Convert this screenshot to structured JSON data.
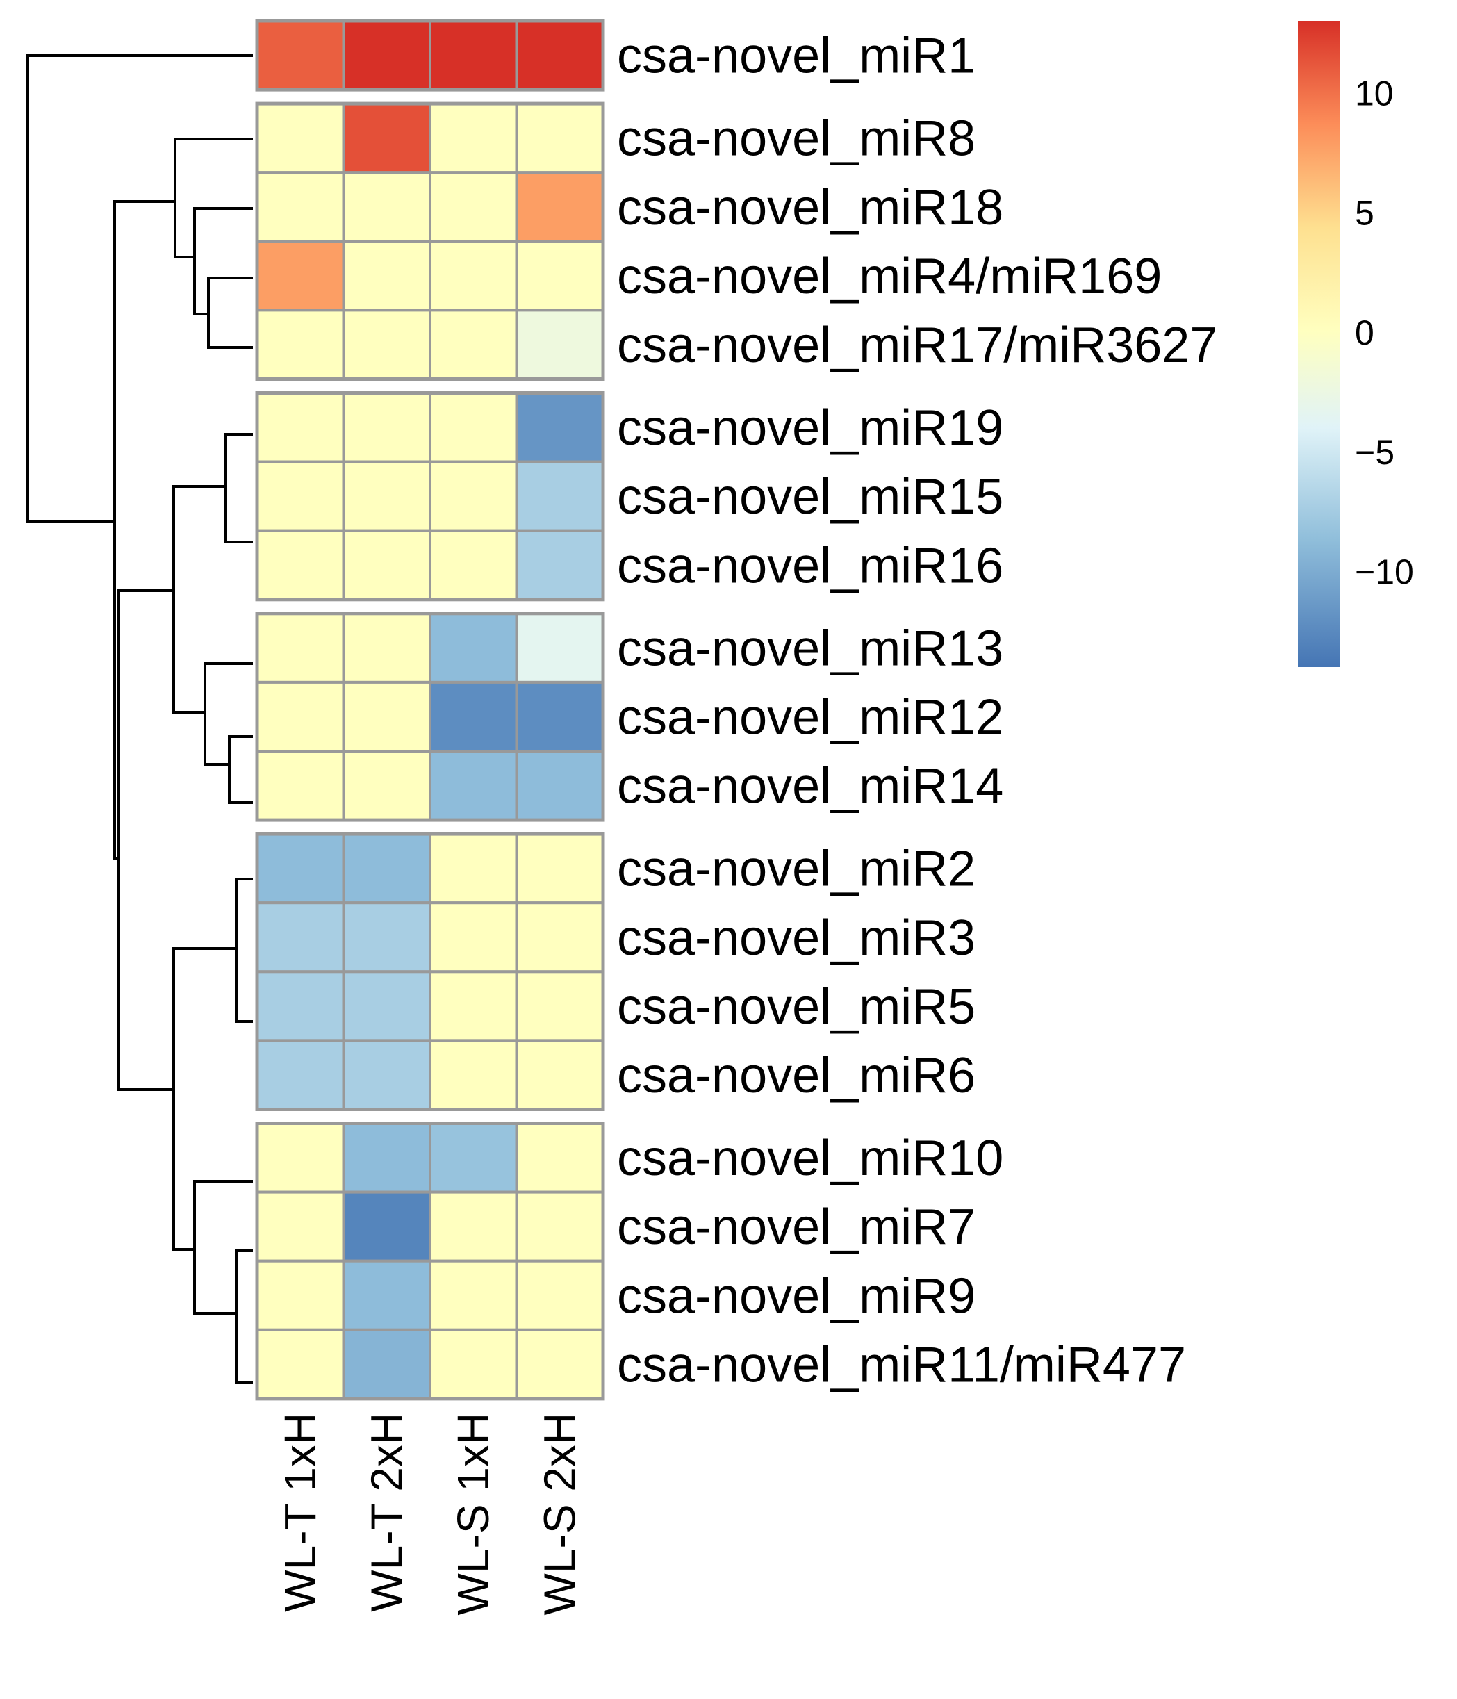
{
  "chart_data": {
    "type": "heatmap",
    "title": "",
    "columns": [
      "WL-T 1xH",
      "WL-T 2xH",
      "WL-S 1xH",
      "WL-S 2xH"
    ],
    "rows": [
      "csa-novel_miR1",
      "csa-novel_miR8",
      "csa-novel_miR18",
      "csa-novel_miR4/miR169",
      "csa-novel_miR17/miR3627",
      "csa-novel_miR19",
      "csa-novel_miR15",
      "csa-novel_miR16",
      "csa-novel_miR13",
      "csa-novel_miR12",
      "csa-novel_miR14",
      "csa-novel_miR2",
      "csa-novel_miR3",
      "csa-novel_miR5",
      "csa-novel_miR6",
      "csa-novel_miR10",
      "csa-novel_miR7",
      "csa-novel_miR9",
      "csa-novel_miR11/miR477"
    ],
    "values": [
      [
        10.8,
        13,
        13,
        13
      ],
      [
        0,
        11.5,
        0,
        0
      ],
      [
        0,
        0,
        0,
        7.8
      ],
      [
        7.8,
        0,
        0,
        0
      ],
      [
        0,
        0,
        0,
        -2.5
      ],
      [
        0,
        0,
        0,
        -12
      ],
      [
        0,
        0,
        0,
        -8
      ],
      [
        0,
        0,
        0,
        -8
      ],
      [
        0,
        0,
        -9.5,
        -4
      ],
      [
        0,
        0,
        -12.5,
        -12.5
      ],
      [
        0,
        0,
        -9.5,
        -9.5
      ],
      [
        -9.5,
        -9.5,
        0,
        0
      ],
      [
        -8,
        -8,
        0,
        0
      ],
      [
        -8,
        -8,
        0,
        0
      ],
      [
        -8,
        -8,
        0,
        0
      ],
      [
        0,
        -9.5,
        -9,
        0
      ],
      [
        0,
        -13,
        0,
        0
      ],
      [
        0,
        -9.5,
        0,
        0
      ],
      [
        0,
        -10,
        0,
        0
      ]
    ],
    "row_groups": [
      1,
      4,
      3,
      3,
      4,
      4
    ],
    "legend": {
      "position": "right",
      "range": [
        -14,
        13
      ],
      "ticks": [
        10,
        5,
        0,
        -5,
        -10
      ],
      "tick_labels": [
        "10",
        "5",
        "0",
        "−5",
        "−10"
      ]
    },
    "colors": {
      "low": "#4575b4",
      "mid": "#ffffbf",
      "high": "#d73027",
      "gradient": [
        "#4575b4",
        "#91bfdb",
        "#e0f3f8",
        "#ffffbf",
        "#fee090",
        "#fc8d59",
        "#d73027"
      ],
      "cell_border": "#999999",
      "dendrogram": "#000000"
    },
    "dendrogram": "row"
  }
}
